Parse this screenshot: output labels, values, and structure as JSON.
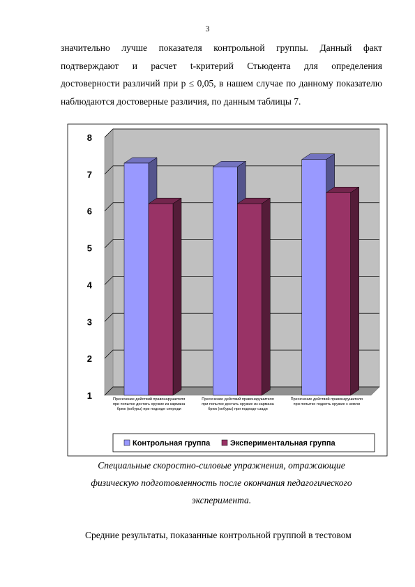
{
  "page_number": "3",
  "paragraph_1": [
    "значительно лучше показателя контрольной группы. Данный факт",
    "подтверждают и расчет t-критерий Стьюдента для определения",
    "достоверности различий при p ≤ 0,05, в нашем случае по данному показателю",
    "наблюдаются достоверные различия, по данным таблицы 7."
  ],
  "chart_data": {
    "type": "bar3d",
    "categories": [
      "Пресечение действий правонарушителя при попытке достать оружие из кармана брюк (кобуры) при подходе спереди",
      "Пресечение действий правонарушителя при попытке достать оружие из кармана брюк (кобуры) при подходе сзади",
      "Пресечение действий правонарушителя при попытке поднять оружие с земли"
    ],
    "series": [
      {
        "name": "Контрольная группа",
        "color": "#9999ff",
        "values": [
          7.3,
          7.2,
          7.4
        ]
      },
      {
        "name": "Экспериментальная группа",
        "color": "#993366",
        "values": [
          6.2,
          6.2,
          6.5
        ]
      }
    ],
    "ylim": [
      1,
      8
    ],
    "yticks": [
      1,
      2,
      3,
      4,
      5,
      6,
      7,
      8
    ],
    "grid": true,
    "legend": "bottom"
  },
  "caption": [
    "Специальные скоростно-силовые упражнения, отражающие",
    "физическую подготовленность после окончания педагогического",
    "эксперимента."
  ],
  "paragraph_2": [
    "Средние результаты, показанные контрольной группой в тестовом"
  ]
}
